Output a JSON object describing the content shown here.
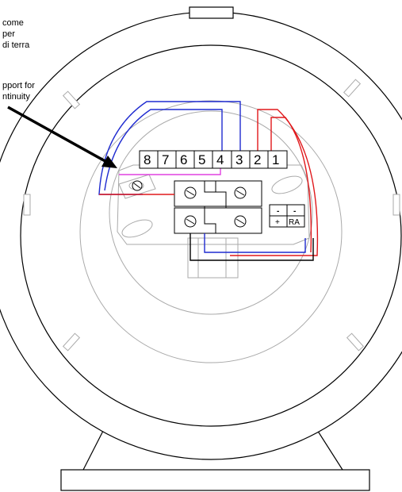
{
  "annotation_top": {
    "lines": [
      "come",
      "per",
      "di terra"
    ]
  },
  "annotation_bottom": {
    "lines": [
      "pport for",
      "ntinuity"
    ]
  },
  "terminals": [
    "8",
    "7",
    "6",
    "5",
    "4",
    "3",
    "2",
    "1"
  ],
  "polarity_block": {
    "top": [
      "-",
      "-"
    ],
    "bottom": [
      "+",
      "RA"
    ]
  },
  "colors": {
    "outline": "#000000",
    "inner_gray": "#aaaaaa",
    "wire_blue": "#1f2bd0",
    "wire_red": "#e0181b",
    "wire_magenta": "#e040e0",
    "wire_black": "#000000"
  }
}
